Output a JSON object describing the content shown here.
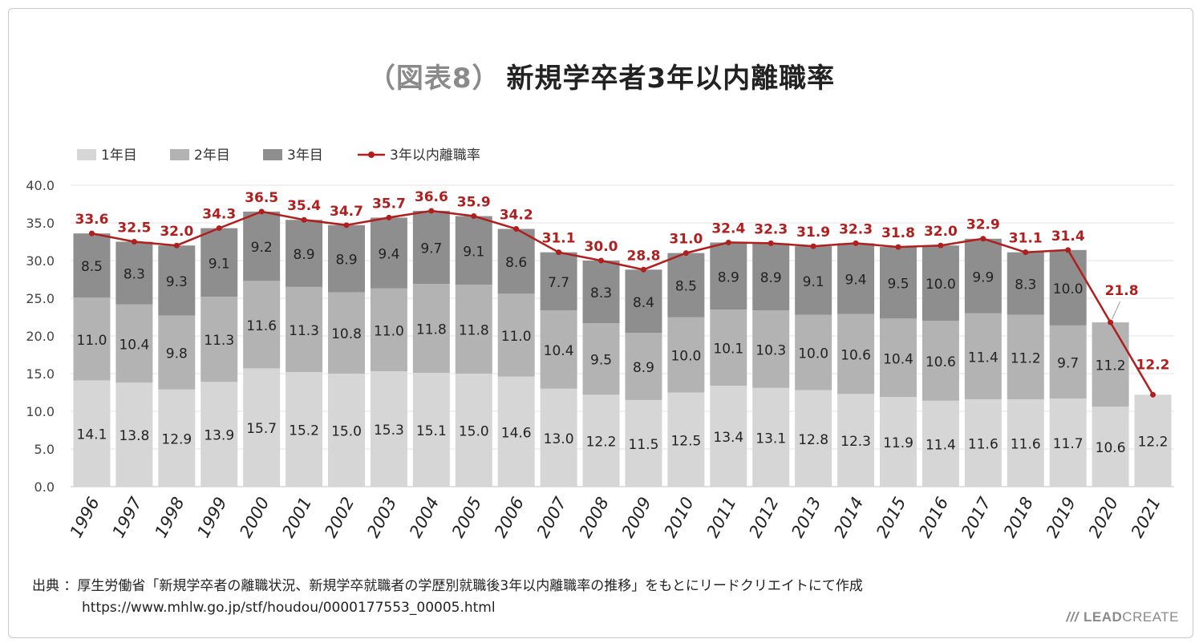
{
  "title": {
    "prefix": "（図表8）",
    "main": "新規学卒者3年以内離職率"
  },
  "colors": {
    "year1": "#d6d6d6",
    "year2": "#b3b3b3",
    "year3": "#8e8e8e",
    "rate": "#b01e1e"
  },
  "chart_data": {
    "type": "bar",
    "stacked": true,
    "categories": [
      "1996",
      "1997",
      "1998",
      "1999",
      "2000",
      "2001",
      "2002",
      "2003",
      "2004",
      "2005",
      "2006",
      "2007",
      "2008",
      "2009",
      "2010",
      "2011",
      "2012",
      "2013",
      "2014",
      "2015",
      "2016",
      "2017",
      "2018",
      "2019",
      "2020",
      "2021"
    ],
    "series": [
      {
        "name": "1年目",
        "values": [
          14.1,
          13.8,
          12.9,
          13.9,
          15.7,
          15.2,
          15.0,
          15.3,
          15.1,
          15.0,
          14.6,
          13.0,
          12.2,
          11.5,
          12.5,
          13.4,
          13.1,
          12.8,
          12.3,
          11.9,
          11.4,
          11.6,
          11.6,
          11.7,
          10.6,
          12.2
        ]
      },
      {
        "name": "2年目",
        "values": [
          11.0,
          10.4,
          9.8,
          11.3,
          11.6,
          11.3,
          10.8,
          11.0,
          11.8,
          11.8,
          11.0,
          10.4,
          9.5,
          8.9,
          10.0,
          10.1,
          10.3,
          10.0,
          10.6,
          10.4,
          10.6,
          11.4,
          11.2,
          9.7,
          11.2,
          null
        ]
      },
      {
        "name": "3年目",
        "values": [
          8.5,
          8.3,
          9.3,
          9.1,
          9.2,
          8.9,
          8.9,
          9.4,
          9.7,
          9.1,
          8.6,
          7.7,
          8.3,
          8.4,
          8.5,
          8.9,
          8.9,
          9.1,
          9.4,
          9.5,
          10.0,
          9.9,
          8.3,
          10.0,
          null,
          null
        ]
      }
    ],
    "line": {
      "name": "3年以内離職率",
      "type": "line",
      "values": [
        33.6,
        32.5,
        32.0,
        34.3,
        36.5,
        35.4,
        34.7,
        35.7,
        36.6,
        35.9,
        34.2,
        31.1,
        30.0,
        28.8,
        31.0,
        32.4,
        32.3,
        31.9,
        32.3,
        31.8,
        32.0,
        32.9,
        31.1,
        31.4,
        21.8,
        12.2
      ]
    },
    "ylim": [
      0,
      40
    ],
    "yticks": [
      "0.0",
      "5.0",
      "10.0",
      "15.0",
      "20.0",
      "25.0",
      "30.0",
      "35.0",
      "40.0"
    ],
    "grid": true,
    "legend": "top-left"
  },
  "source": {
    "label": "出典 ：",
    "text": "厚生労働省「新規学卒者の離職状況、新規学卒就職者の学歴別就職後3年以内離職率の推移」をもとにリードクリエイトにて作成",
    "url": "https://www.mhlw.go.jp/stf/houdou/0000177553_00005.html"
  },
  "brand": {
    "slashes": "///",
    "lead": "LEAD",
    "create": "CREATE"
  }
}
